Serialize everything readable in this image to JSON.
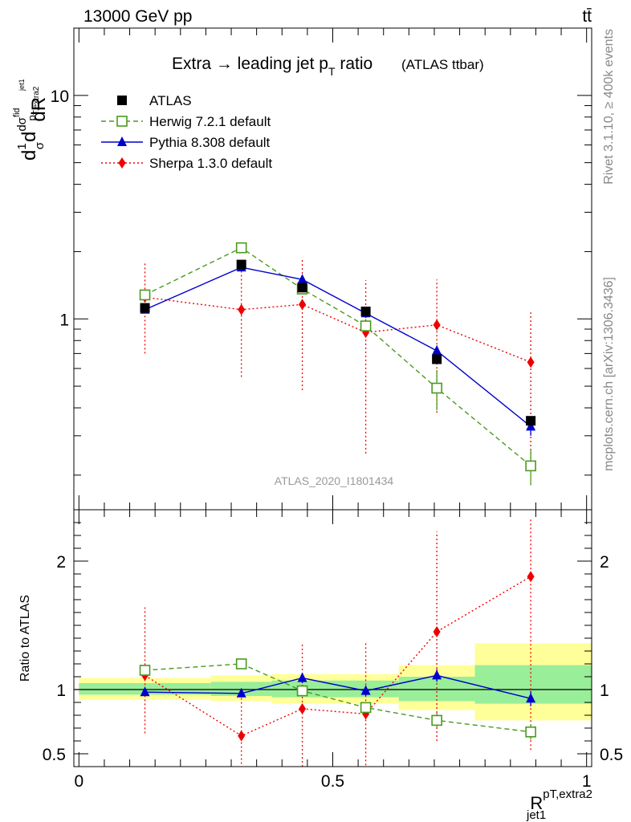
{
  "header": {
    "energy_label": "13000 GeV pp",
    "process_label": "tt̄"
  },
  "side_labels": {
    "rivet": "Rivet 3.1.10, ≥ 400k events",
    "mcplots": "mcplots.cern.ch [arXiv:1306.3436]"
  },
  "analysis_label": "ATLAS_2020_I1801434",
  "colors": {
    "atlas": "#000000",
    "herwig": "#4a9a1e",
    "pythia": "#0000cc",
    "sherpa": "#ee0000",
    "band_inner": "#99ee99",
    "band_outer": "#ffff99"
  },
  "chart_data": [
    {
      "type": "line",
      "panel": "main",
      "title_main": "Extra → leading jet p",
      "title_sub": "T",
      "title_tail": " ratio",
      "title_note": "(ATLAS ttbar)",
      "ylabel": "dσ/d R (1/σ dσ^fid/dp_T,extra2 ...)",
      "yscale": "log",
      "ylim": [
        0.14,
        20
      ],
      "xlim": [
        -0.01,
        1.01
      ],
      "y_ticks": [
        {
          "value": 1,
          "label": "1"
        },
        {
          "value": 10,
          "label": "10"
        }
      ],
      "legend_position": "top-left",
      "x": [
        0.13,
        0.32,
        0.44,
        0.565,
        0.705,
        0.89
      ],
      "series": [
        {
          "name": "ATLAS",
          "style": "data",
          "values": [
            1.12,
            1.75,
            1.38,
            1.08,
            0.66,
            0.35
          ]
        },
        {
          "name": "Herwig 7.2.1 default",
          "style": "dashed",
          "marker": "open-square",
          "values": [
            1.28,
            2.08,
            1.36,
            0.93,
            0.49,
            0.22
          ],
          "err": [
            0.04,
            0.05,
            0.05,
            0.05,
            0.1,
            0.04
          ]
        },
        {
          "name": "Pythia 8.308 default",
          "style": "solid",
          "marker": "triangle",
          "values": [
            1.1,
            1.7,
            1.5,
            1.06,
            0.72,
            0.33
          ],
          "err": [
            0.04,
            0.05,
            0.05,
            0.05,
            0.04,
            0.03
          ]
        },
        {
          "name": "Sherpa 1.3.0 default",
          "style": "dotted",
          "marker": "diamond",
          "values": [
            1.25,
            1.1,
            1.16,
            0.87,
            0.94,
            0.64
          ],
          "err": [
            0.55,
            0.55,
            0.68,
            0.62,
            0.56,
            0.43
          ]
        }
      ]
    },
    {
      "type": "line",
      "panel": "ratio",
      "ylabel": "Ratio to ATLAS",
      "xlabel_main": "R",
      "xlabel_sup": "pT,extra2",
      "xlabel_sub": "jet1",
      "ylim": [
        0.4,
        2.4
      ],
      "xlim": [
        -0.01,
        1.01
      ],
      "x_ticks": [
        {
          "value": 0,
          "label": "0"
        },
        {
          "value": 0.5,
          "label": "0.5"
        },
        {
          "value": 1,
          "label": "1"
        }
      ],
      "y_ticks": [
        {
          "value": 0.5,
          "label": "0.5"
        },
        {
          "value": 1,
          "label": "1"
        },
        {
          "value": 2,
          "label": "2"
        }
      ],
      "bins": [
        {
          "x0": 0.0,
          "x1": 0.26,
          "inner": [
            0.96,
            1.05
          ],
          "outer": [
            0.92,
            1.09
          ]
        },
        {
          "x0": 0.26,
          "x1": 0.38,
          "inner": [
            0.95,
            1.06
          ],
          "outer": [
            0.91,
            1.11
          ]
        },
        {
          "x0": 0.38,
          "x1": 0.63,
          "inner": [
            0.94,
            1.07
          ],
          "outer": [
            0.89,
            1.12
          ]
        },
        {
          "x0": 0.63,
          "x1": 0.78,
          "inner": [
            0.91,
            1.1
          ],
          "outer": [
            0.84,
            1.19
          ]
        },
        {
          "x0": 0.78,
          "x1": 1.01,
          "inner": [
            0.89,
            1.19
          ],
          "outer": [
            0.76,
            1.36
          ]
        }
      ],
      "x": [
        0.13,
        0.32,
        0.44,
        0.565,
        0.705,
        0.89
      ],
      "series": [
        {
          "name": "Herwig 7.2.1 default",
          "style": "dashed",
          "marker": "open-square",
          "values": [
            1.15,
            1.2,
            0.99,
            0.86,
            0.76,
            0.67
          ],
          "err": [
            0.03,
            0.03,
            0.03,
            0.04,
            0.06,
            0.06
          ]
        },
        {
          "name": "Pythia 8.308 default",
          "style": "solid",
          "marker": "triangle",
          "values": [
            0.98,
            0.97,
            1.09,
            0.99,
            1.11,
            0.93
          ],
          "err": [
            0.03,
            0.03,
            0.04,
            0.04,
            0.05,
            0.06
          ]
        },
        {
          "name": "Sherpa 1.3.0 default",
          "style": "dotted",
          "marker": "diamond",
          "values": [
            1.11,
            0.64,
            0.85,
            0.81,
            1.45,
            1.88
          ],
          "err_lo": [
            0.45,
            0.25,
            0.45,
            0.4,
            0.85,
            1.35
          ],
          "err_hi": [
            0.53,
            0.35,
            0.5,
            0.55,
            0.78,
            0.45
          ]
        }
      ]
    }
  ]
}
